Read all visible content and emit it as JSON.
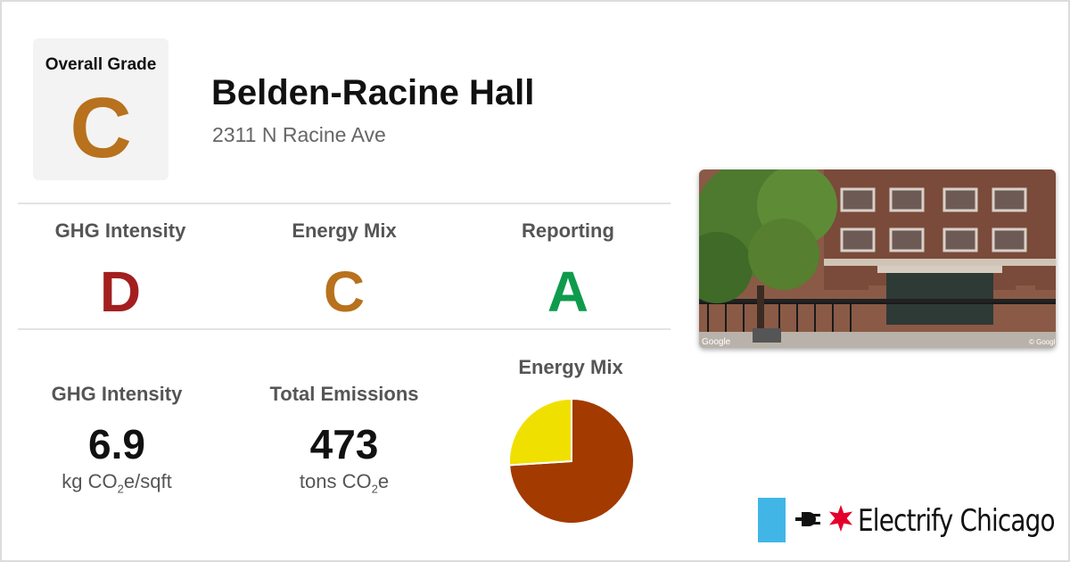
{
  "overall": {
    "label": "Overall Grade",
    "grade": "C",
    "color": "#b8711c"
  },
  "building": {
    "name": "Belden-Racine Hall",
    "address": "2311 N Racine Ave"
  },
  "grades": [
    {
      "label": "GHG Intensity",
      "grade": "D",
      "color": "#a31f1f"
    },
    {
      "label": "Energy Mix",
      "grade": "C",
      "color": "#b8711c"
    },
    {
      "label": "Reporting",
      "grade": "A",
      "color": "#0f9b4c"
    }
  ],
  "stats": [
    {
      "label": "GHG Intensity",
      "value": "6.9",
      "unit_pre": "kg CO",
      "unit_sub": "2",
      "unit_post": "e/sqft"
    },
    {
      "label": "Total Emissions",
      "value": "473",
      "unit_pre": "tons CO",
      "unit_sub": "2",
      "unit_post": "e"
    }
  ],
  "energy_mix": {
    "title": "Energy Mix",
    "slices": [
      {
        "share": 0.74,
        "color": "#a33a00"
      },
      {
        "share": 0.26,
        "color": "#f0e000"
      }
    ]
  },
  "photo": {
    "credit_left": "Google",
    "credit_right": "© Google"
  },
  "brand": {
    "name": "Electrify Chicago",
    "bar_color": "#41b6e6",
    "star_color": "#e4002b",
    "icons": [
      "plug-icon",
      "star-icon"
    ]
  }
}
